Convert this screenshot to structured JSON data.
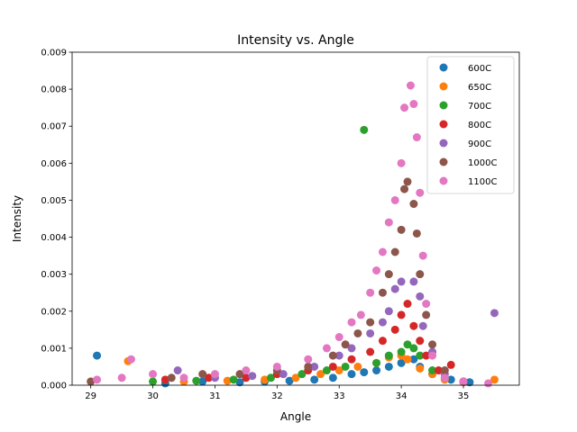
{
  "chart_data": {
    "type": "scatter",
    "title": "Intensity vs. Angle",
    "xlabel": "Angle",
    "ylabel": "Intensity",
    "xlim": [
      28.7,
      35.9
    ],
    "ylim": [
      0,
      0.009
    ],
    "x_ticks": [
      29,
      30,
      31,
      32,
      33,
      34,
      35
    ],
    "y_ticks": [
      0.0,
      0.001,
      0.002,
      0.003,
      0.004,
      0.005,
      0.006,
      0.007,
      0.008,
      0.009
    ],
    "y_tick_labels": [
      "0.000",
      "0.001",
      "0.002",
      "0.003",
      "0.004",
      "0.005",
      "0.006",
      "0.007",
      "0.008",
      "0.009"
    ],
    "grid": false,
    "legend": "top-right",
    "series": [
      {
        "name": "600C",
        "color": "#1f77b4",
        "points": [
          [
            29.1,
            0.0008
          ],
          [
            30.2,
            5e-05
          ],
          [
            30.8,
            0.0001
          ],
          [
            31.4,
            8e-05
          ],
          [
            31.8,
            0.0001
          ],
          [
            32.2,
            0.00012
          ],
          [
            32.6,
            0.00015
          ],
          [
            32.9,
            0.0002
          ],
          [
            33.2,
            0.0003
          ],
          [
            33.4,
            0.00035
          ],
          [
            33.6,
            0.0004
          ],
          [
            33.8,
            0.0005
          ],
          [
            34.0,
            0.0006
          ],
          [
            34.2,
            0.0007
          ],
          [
            34.3,
            0.0005
          ],
          [
            34.5,
            0.0003
          ],
          [
            34.8,
            0.00015
          ],
          [
            35.1,
            8e-05
          ]
        ]
      },
      {
        "name": "650C",
        "color": "#ff7f0e",
        "points": [
          [
            29.6,
            0.00065
          ],
          [
            30.5,
            0.0001
          ],
          [
            31.2,
            0.00012
          ],
          [
            31.8,
            0.00015
          ],
          [
            32.3,
            0.0002
          ],
          [
            32.7,
            0.0003
          ],
          [
            33.0,
            0.0004
          ],
          [
            33.3,
            0.0005
          ],
          [
            33.6,
            0.0006
          ],
          [
            33.8,
            0.00075
          ],
          [
            34.0,
            0.0008
          ],
          [
            34.1,
            0.0007
          ],
          [
            34.3,
            0.00045
          ],
          [
            34.5,
            0.0003
          ],
          [
            34.7,
            0.00015
          ],
          [
            35.0,
            8e-05
          ],
          [
            35.5,
            0.00015
          ]
        ]
      },
      {
        "name": "700C",
        "color": "#2ca02c",
        "points": [
          [
            30.0,
            0.0001
          ],
          [
            30.7,
            0.00012
          ],
          [
            31.3,
            0.00015
          ],
          [
            31.9,
            0.0002
          ],
          [
            32.4,
            0.0003
          ],
          [
            32.8,
            0.0004
          ],
          [
            33.1,
            0.0005
          ],
          [
            33.4,
            0.0069
          ],
          [
            33.6,
            0.0006
          ],
          [
            33.8,
            0.0008
          ],
          [
            34.0,
            0.0009
          ],
          [
            34.1,
            0.0011
          ],
          [
            34.2,
            0.001
          ],
          [
            34.3,
            0.0008
          ],
          [
            34.5,
            0.0004
          ],
          [
            34.7,
            0.0002
          ],
          [
            35.0,
            0.0001
          ]
        ]
      },
      {
        "name": "800C",
        "color": "#d62728",
        "points": [
          [
            30.2,
            0.00015
          ],
          [
            30.9,
            0.0002
          ],
          [
            31.5,
            0.0002
          ],
          [
            32.0,
            0.0003
          ],
          [
            32.5,
            0.0004
          ],
          [
            32.9,
            0.0005
          ],
          [
            33.2,
            0.0007
          ],
          [
            33.5,
            0.0009
          ],
          [
            33.7,
            0.0012
          ],
          [
            33.9,
            0.0015
          ],
          [
            34.0,
            0.0019
          ],
          [
            34.1,
            0.0022
          ],
          [
            34.2,
            0.0016
          ],
          [
            34.3,
            0.0012
          ],
          [
            34.4,
            0.0008
          ],
          [
            34.6,
            0.0004
          ],
          [
            34.8,
            0.00055
          ],
          [
            35.0,
            0.0001
          ]
        ]
      },
      {
        "name": "900C",
        "color": "#9467bd",
        "points": [
          [
            30.4,
            0.0004
          ],
          [
            31.0,
            0.0002
          ],
          [
            31.6,
            0.00025
          ],
          [
            32.1,
            0.0003
          ],
          [
            32.6,
            0.0005
          ],
          [
            33.0,
            0.0008
          ],
          [
            33.2,
            0.001
          ],
          [
            33.5,
            0.0014
          ],
          [
            33.7,
            0.0017
          ],
          [
            33.8,
            0.002
          ],
          [
            33.9,
            0.0026
          ],
          [
            34.0,
            0.0028
          ],
          [
            34.2,
            0.0028
          ],
          [
            34.3,
            0.0024
          ],
          [
            34.35,
            0.0016
          ],
          [
            34.5,
            0.0009
          ],
          [
            34.7,
            0.0003
          ],
          [
            35.5,
            0.00195
          ]
        ]
      },
      {
        "name": "1000C",
        "color": "#8c564b",
        "points": [
          [
            29.0,
            0.0001
          ],
          [
            30.3,
            0.0002
          ],
          [
            30.8,
            0.0003
          ],
          [
            31.4,
            0.0003
          ],
          [
            32.0,
            0.0004
          ],
          [
            32.5,
            0.0005
          ],
          [
            32.9,
            0.0008
          ],
          [
            33.1,
            0.0011
          ],
          [
            33.3,
            0.0014
          ],
          [
            33.5,
            0.0017
          ],
          [
            33.7,
            0.0025
          ],
          [
            33.8,
            0.003
          ],
          [
            33.9,
            0.0036
          ],
          [
            34.0,
            0.0042
          ],
          [
            34.05,
            0.0053
          ],
          [
            34.1,
            0.0055
          ],
          [
            34.2,
            0.0049
          ],
          [
            34.25,
            0.0041
          ],
          [
            34.3,
            0.003
          ],
          [
            34.4,
            0.0019
          ],
          [
            34.5,
            0.0011
          ],
          [
            34.7,
            0.0004
          ],
          [
            35.0,
            0.0001
          ]
        ]
      },
      {
        "name": "1100C",
        "color": "#e377c2",
        "points": [
          [
            29.1,
            0.00015
          ],
          [
            29.5,
            0.0002
          ],
          [
            29.65,
            0.0007
          ],
          [
            30.0,
            0.0003
          ],
          [
            30.5,
            0.0002
          ],
          [
            31.0,
            0.0003
          ],
          [
            31.5,
            0.0004
          ],
          [
            32.0,
            0.0005
          ],
          [
            32.5,
            0.0007
          ],
          [
            32.8,
            0.001
          ],
          [
            33.0,
            0.0013
          ],
          [
            33.2,
            0.0017
          ],
          [
            33.35,
            0.0019
          ],
          [
            33.5,
            0.0025
          ],
          [
            33.6,
            0.0031
          ],
          [
            33.7,
            0.0036
          ],
          [
            33.8,
            0.0044
          ],
          [
            33.9,
            0.005
          ],
          [
            34.0,
            0.006
          ],
          [
            34.05,
            0.0075
          ],
          [
            34.15,
            0.0081
          ],
          [
            34.2,
            0.0076
          ],
          [
            34.25,
            0.0067
          ],
          [
            34.3,
            0.0052
          ],
          [
            34.35,
            0.0035
          ],
          [
            34.4,
            0.0022
          ],
          [
            34.5,
            0.0008
          ],
          [
            34.7,
            0.0002
          ],
          [
            35.0,
            0.0001
          ],
          [
            35.4,
            5e-05
          ]
        ]
      }
    ]
  }
}
